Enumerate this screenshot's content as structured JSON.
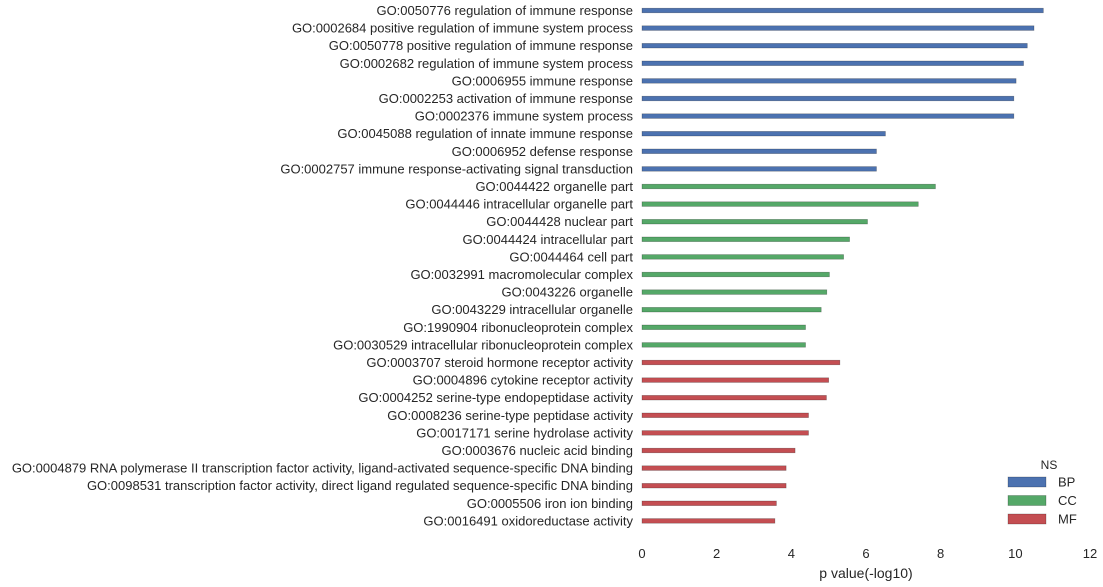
{
  "chart_data": {
    "type": "bar",
    "orientation": "horizontal",
    "xlabel": "p value(-log10)",
    "xlim": [
      0,
      12
    ],
    "xticks": [
      "0",
      "2",
      "4",
      "6",
      "8",
      "10",
      "12"
    ],
    "grid": false,
    "legend": {
      "title": "NS",
      "placement": "bottom-right",
      "entries": [
        {
          "name": "BP",
          "color": "#4c72b0"
        },
        {
          "name": "CC",
          "color": "#55a868"
        },
        {
          "name": "MF",
          "color": "#c44e52"
        }
      ]
    },
    "bars": [
      {
        "label": "GO:0050776 regulation of immune response",
        "value": 10.75,
        "group": "BP"
      },
      {
        "label": "GO:0002684 positive regulation of immune system process",
        "value": 10.5,
        "group": "BP"
      },
      {
        "label": "GO:0050778 positive regulation of immune response",
        "value": 10.32,
        "group": "BP"
      },
      {
        "label": "GO:0002682 regulation of immune system process",
        "value": 10.22,
        "group": "BP"
      },
      {
        "label": "GO:0006955 immune response",
        "value": 10.02,
        "group": "BP"
      },
      {
        "label": "GO:0002253 activation of immune response",
        "value": 9.96,
        "group": "BP"
      },
      {
        "label": "GO:0002376 immune system process",
        "value": 9.96,
        "group": "BP"
      },
      {
        "label": "GO:0045088 regulation of innate immune response",
        "value": 6.52,
        "group": "BP"
      },
      {
        "label": "GO:0006952 defense response",
        "value": 6.28,
        "group": "BP"
      },
      {
        "label": "GO:0002757 immune response-activating signal transduction",
        "value": 6.28,
        "group": "BP"
      },
      {
        "label": "GO:0044422 organelle part",
        "value": 7.86,
        "group": "CC"
      },
      {
        "label": "GO:0044446 intracellular organelle part",
        "value": 7.4,
        "group": "CC"
      },
      {
        "label": "GO:0044428 nuclear part",
        "value": 6.04,
        "group": "CC"
      },
      {
        "label": "GO:0044424 intracellular part",
        "value": 5.56,
        "group": "CC"
      },
      {
        "label": "GO:0044464 cell part",
        "value": 5.4,
        "group": "CC"
      },
      {
        "label": "GO:0032991 macromolecular complex",
        "value": 5.02,
        "group": "CC"
      },
      {
        "label": "GO:0043226 organelle",
        "value": 4.95,
        "group": "CC"
      },
      {
        "label": "GO:0043229 intracellular organelle",
        "value": 4.8,
        "group": "CC"
      },
      {
        "label": "GO:1990904 ribonucleoprotein complex",
        "value": 4.38,
        "group": "CC"
      },
      {
        "label": "GO:0030529 intracellular ribonucleoprotein complex",
        "value": 4.38,
        "group": "CC"
      },
      {
        "label": "GO:0003707 steroid hormone receptor activity",
        "value": 5.3,
        "group": "MF"
      },
      {
        "label": "GO:0004896 cytokine receptor activity",
        "value": 5.0,
        "group": "MF"
      },
      {
        "label": "GO:0004252 serine-type endopeptidase activity",
        "value": 4.94,
        "group": "MF"
      },
      {
        "label": "GO:0008236 serine-type peptidase activity",
        "value": 4.46,
        "group": "MF"
      },
      {
        "label": "GO:0017171 serine hydrolase activity",
        "value": 4.46,
        "group": "MF"
      },
      {
        "label": "GO:0003676 nucleic acid binding",
        "value": 4.1,
        "group": "MF"
      },
      {
        "label": "GO:0004879 RNA polymerase II transcription factor activity, ligand-activated sequence-specific DNA binding",
        "value": 3.86,
        "group": "MF"
      },
      {
        "label": "GO:0098531 transcription factor activity, direct ligand regulated sequence-specific DNA binding",
        "value": 3.86,
        "group": "MF"
      },
      {
        "label": "GO:0005506 iron ion binding",
        "value": 3.6,
        "group": "MF"
      },
      {
        "label": "GO:0016491 oxidoreductase activity",
        "value": 3.56,
        "group": "MF"
      }
    ]
  }
}
